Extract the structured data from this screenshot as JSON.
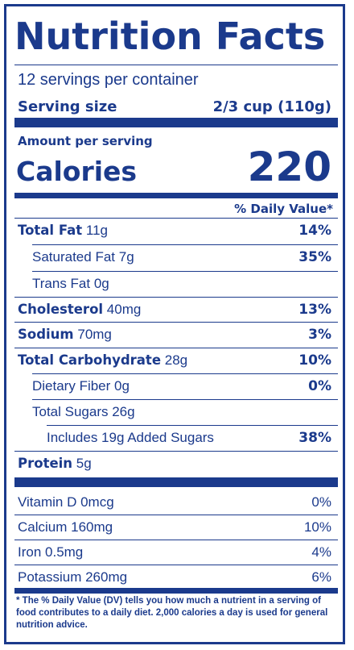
{
  "title": "Nutrition Facts",
  "servings_per_container": "12 servings per container",
  "serving_size_label": "Serving size",
  "serving_size_value": "2/3 cup (110g)",
  "amount_per_serving": "Amount per serving",
  "calories_label": "Calories",
  "calories_value": "220",
  "daily_value_header": "% Daily Value*",
  "nutrients": [
    {
      "name": "Total Fat",
      "amount": "11g",
      "dv": "14%"
    },
    {
      "name": "Saturated Fat",
      "amount": "7g",
      "dv": "35%"
    },
    {
      "name": "Trans Fat",
      "amount": "0g",
      "dv": ""
    },
    {
      "name": "Cholesterol",
      "amount": "40mg",
      "dv": "13%"
    },
    {
      "name": "Sodium",
      "amount": "70mg",
      "dv": "3%"
    },
    {
      "name": "Total Carbohydrate",
      "amount": "28g",
      "dv": "10%"
    },
    {
      "name": "Dietary Fiber",
      "amount": "0g",
      "dv": "0%"
    },
    {
      "name": "Total Sugars",
      "amount": "26g",
      "dv": ""
    },
    {
      "name": "Includes 19g Added Sugars",
      "amount": "",
      "dv": "38%"
    },
    {
      "name": "Protein",
      "amount": "5g",
      "dv": ""
    }
  ],
  "vitamins": [
    {
      "name": "Vitamin D 0mcg",
      "dv": "0%"
    },
    {
      "name": "Calcium 160mg",
      "dv": "10%"
    },
    {
      "name": "Iron 0.5mg",
      "dv": "4%"
    },
    {
      "name": "Potassium 260mg",
      "dv": "6%"
    }
  ],
  "footnote": "* The % Daily Value (DV) tells you how much a nutrient in a serving of food contributes to a daily diet. 2,000 calories a day is used for general nutrition advice.",
  "colors": {
    "ink": "#1b3a8c",
    "background": "#ffffff"
  }
}
